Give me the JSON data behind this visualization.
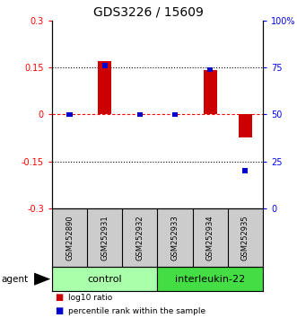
{
  "title": "GDS3226 / 15609",
  "samples": [
    "GSM252890",
    "GSM252931",
    "GSM252932",
    "GSM252933",
    "GSM252934",
    "GSM252935"
  ],
  "log10_ratio": [
    0.0,
    0.172,
    0.0,
    0.0,
    0.143,
    -0.072
  ],
  "percentile_rank": [
    50.0,
    76.0,
    50.0,
    50.0,
    74.0,
    20.0
  ],
  "ylim_left": [
    -0.3,
    0.3
  ],
  "ylim_right": [
    0,
    100
  ],
  "yticks_left": [
    -0.3,
    -0.15,
    0.0,
    0.15,
    0.3
  ],
  "yticks_right": [
    0,
    25,
    50,
    75,
    100
  ],
  "ytick_labels_left": [
    "-0.3",
    "-0.15",
    "0",
    "0.15",
    "0.3"
  ],
  "ytick_labels_right": [
    "0",
    "25",
    "50",
    "75",
    "100%"
  ],
  "hlines_black": [
    0.15,
    -0.15
  ],
  "red_line_y": 0.0,
  "bar_color_red": "#cc0000",
  "bar_color_blue": "#0000cc",
  "groups": [
    {
      "label": "control",
      "start": 0,
      "end": 3,
      "color": "#aaffaa"
    },
    {
      "label": "interleukin-22",
      "start": 3,
      "end": 6,
      "color": "#44dd44"
    }
  ],
  "agent_label": "agent",
  "legend_items": [
    {
      "color": "#cc0000",
      "label": "log10 ratio"
    },
    {
      "color": "#0000cc",
      "label": "percentile rank within the sample"
    }
  ],
  "plot_bg": "#ffffff"
}
